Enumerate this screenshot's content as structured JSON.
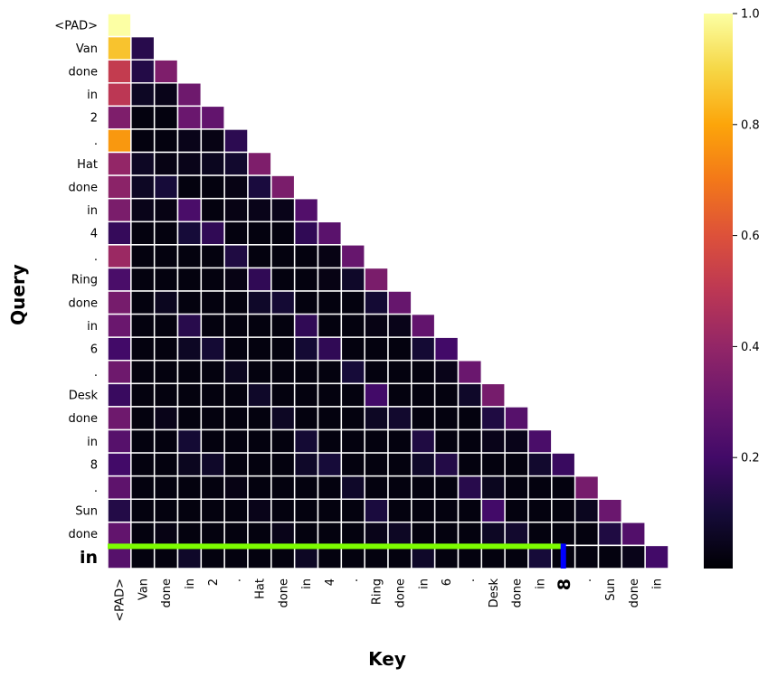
{
  "chart_data": {
    "type": "heatmap",
    "title": "",
    "xlabel": "Key",
    "ylabel": "Query",
    "x_tokens": [
      "<PAD>",
      "Van",
      "done",
      "in",
      "2",
      ".",
      "Hat",
      "done",
      "in",
      "4",
      ".",
      "Ring",
      "done",
      "in",
      "6",
      ".",
      "Desk",
      "done",
      "in",
      "8",
      ".",
      "Sun",
      "done",
      "in"
    ],
    "y_tokens": [
      "<PAD>",
      "Van",
      "done",
      "in",
      "2",
      ".",
      "Hat",
      "done",
      "in",
      "4",
      ".",
      "Ring",
      "done",
      "in",
      "6",
      ".",
      "Desk",
      "done",
      "in",
      "8",
      ".",
      "Sun",
      "done",
      "in"
    ],
    "colormap": "inferno",
    "colorbar": {
      "min": 0.0,
      "max": 1.0,
      "ticks": [
        "0.2",
        "0.4",
        "0.6",
        "0.8",
        "1.0"
      ]
    },
    "mask": "upper-triangle",
    "values": [
      [
        1.0
      ],
      [
        0.86,
        0.14
      ],
      [
        0.52,
        0.13,
        0.35
      ],
      [
        0.5,
        0.06,
        0.04,
        0.31
      ],
      [
        0.35,
        0.02,
        0.02,
        0.3,
        0.28
      ],
      [
        0.77,
        0.02,
        0.02,
        0.04,
        0.03,
        0.15
      ],
      [
        0.4,
        0.06,
        0.03,
        0.04,
        0.05,
        0.08,
        0.35
      ],
      [
        0.38,
        0.06,
        0.1,
        0.02,
        0.02,
        0.03,
        0.11,
        0.34
      ],
      [
        0.34,
        0.04,
        0.03,
        0.22,
        0.02,
        0.03,
        0.04,
        0.04,
        0.24
      ],
      [
        0.17,
        0.02,
        0.02,
        0.1,
        0.16,
        0.02,
        0.02,
        0.02,
        0.16,
        0.26
      ],
      [
        0.42,
        0.02,
        0.02,
        0.02,
        0.02,
        0.12,
        0.02,
        0.02,
        0.02,
        0.03,
        0.29
      ],
      [
        0.22,
        0.02,
        0.02,
        0.02,
        0.02,
        0.03,
        0.16,
        0.02,
        0.02,
        0.03,
        0.07,
        0.34
      ],
      [
        0.33,
        0.02,
        0.05,
        0.02,
        0.02,
        0.02,
        0.07,
        0.09,
        0.02,
        0.02,
        0.02,
        0.09,
        0.29
      ],
      [
        0.3,
        0.02,
        0.02,
        0.14,
        0.02,
        0.02,
        0.02,
        0.02,
        0.16,
        0.02,
        0.02,
        0.03,
        0.04,
        0.28
      ],
      [
        0.2,
        0.02,
        0.02,
        0.06,
        0.09,
        0.02,
        0.02,
        0.02,
        0.09,
        0.16,
        0.02,
        0.02,
        0.02,
        0.09,
        0.2
      ],
      [
        0.31,
        0.02,
        0.02,
        0.02,
        0.02,
        0.05,
        0.02,
        0.02,
        0.02,
        0.02,
        0.1,
        0.02,
        0.02,
        0.02,
        0.04,
        0.3
      ],
      [
        0.18,
        0.02,
        0.02,
        0.02,
        0.02,
        0.02,
        0.07,
        0.02,
        0.02,
        0.02,
        0.02,
        0.2,
        0.02,
        0.02,
        0.02,
        0.07,
        0.33
      ],
      [
        0.31,
        0.02,
        0.04,
        0.02,
        0.02,
        0.02,
        0.02,
        0.06,
        0.02,
        0.02,
        0.02,
        0.06,
        0.08,
        0.02,
        0.02,
        0.02,
        0.12,
        0.25
      ],
      [
        0.25,
        0.02,
        0.02,
        0.09,
        0.02,
        0.02,
        0.02,
        0.02,
        0.09,
        0.02,
        0.02,
        0.02,
        0.02,
        0.12,
        0.02,
        0.02,
        0.04,
        0.04,
        0.22
      ],
      [
        0.2,
        0.02,
        0.02,
        0.05,
        0.07,
        0.02,
        0.02,
        0.02,
        0.07,
        0.1,
        0.02,
        0.02,
        0.02,
        0.07,
        0.13,
        0.02,
        0.02,
        0.02,
        0.08,
        0.18
      ],
      [
        0.27,
        0.02,
        0.02,
        0.02,
        0.02,
        0.03,
        0.02,
        0.02,
        0.02,
        0.02,
        0.07,
        0.02,
        0.02,
        0.02,
        0.02,
        0.14,
        0.05,
        0.02,
        0.02,
        0.02,
        0.33
      ],
      [
        0.13,
        0.02,
        0.02,
        0.02,
        0.02,
        0.02,
        0.04,
        0.02,
        0.02,
        0.02,
        0.02,
        0.11,
        0.02,
        0.02,
        0.02,
        0.02,
        0.2,
        0.02,
        0.02,
        0.02,
        0.05,
        0.3
      ],
      [
        0.28,
        0.02,
        0.03,
        0.02,
        0.02,
        0.02,
        0.02,
        0.04,
        0.02,
        0.02,
        0.02,
        0.04,
        0.06,
        0.02,
        0.02,
        0.02,
        0.06,
        0.08,
        0.02,
        0.02,
        0.02,
        0.12,
        0.24
      ],
      [
        0.25,
        0.02,
        0.02,
        0.07,
        0.02,
        0.02,
        0.02,
        0.02,
        0.06,
        0.02,
        0.02,
        0.02,
        0.02,
        0.07,
        0.02,
        0.02,
        0.02,
        0.02,
        0.1,
        0.02,
        0.02,
        0.02,
        0.04,
        0.2
      ]
    ],
    "highlight_query": {
      "label": "in",
      "index": 23,
      "line_color": "#7CFC00",
      "text_color": "#1a8a1a"
    },
    "highlight_key": {
      "label": "8",
      "index": 19,
      "line_color": "#0000ff",
      "text_color": "#0000ff"
    }
  }
}
